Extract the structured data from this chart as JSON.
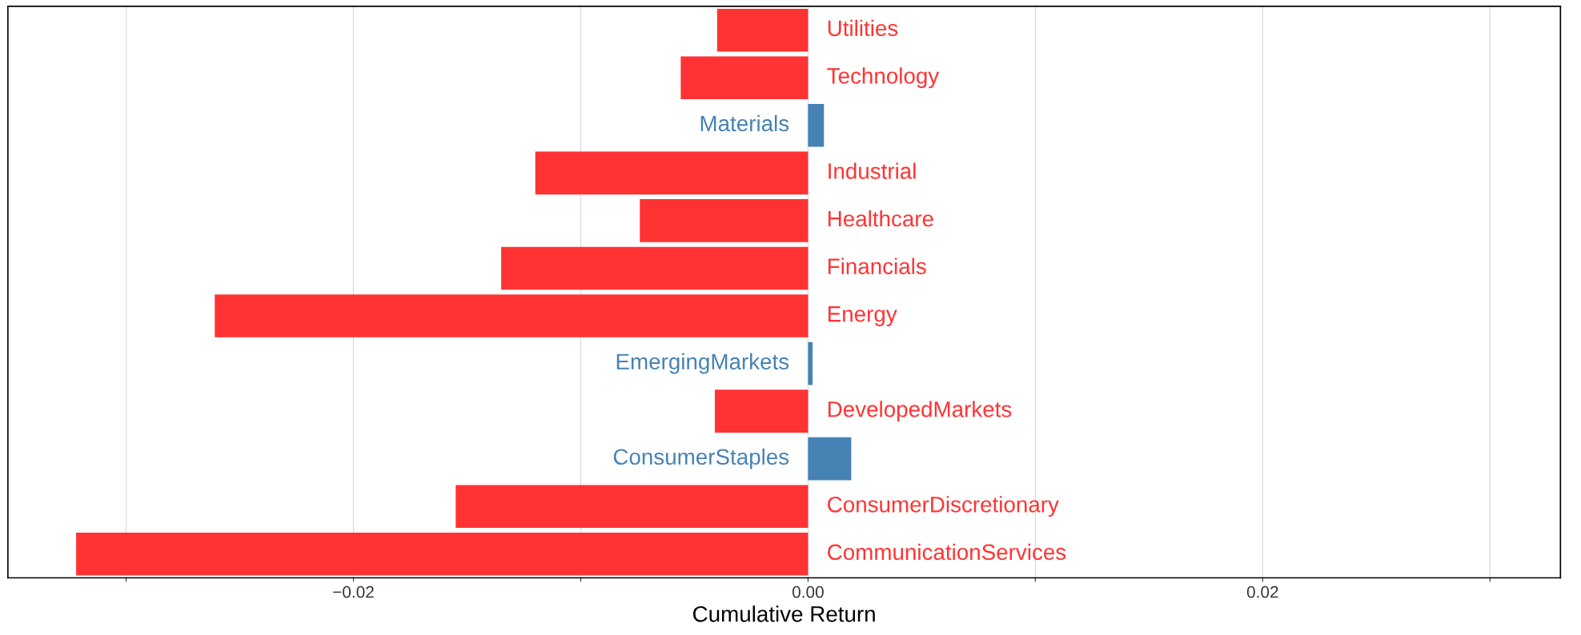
{
  "chart_data": {
    "type": "bar",
    "orientation": "horizontal",
    "xlabel": "Cumulative Return",
    "categories": [
      "Utilities",
      "Technology",
      "Materials",
      "Industrial",
      "Healthcare",
      "Financials",
      "Energy",
      "EmergingMarkets",
      "DevelopedMarkets",
      "ConsumerStaples",
      "ConsumerDiscretionary",
      "CommunicationServices"
    ],
    "values": [
      -0.004,
      -0.0056,
      0.0007,
      -0.012,
      -0.0074,
      -0.0135,
      -0.0261,
      0.0002,
      -0.0041,
      0.0019,
      -0.0155,
      -0.0322
    ],
    "colors": [
      "#ff3333",
      "#ff3333",
      "#4682b4",
      "#ff3333",
      "#ff3333",
      "#ff3333",
      "#ff3333",
      "#4682b4",
      "#ff3333",
      "#4682b4",
      "#ff3333",
      "#ff3333"
    ],
    "xlim": [
      -0.0352,
      0.0331
    ],
    "xticks": [
      {
        "value": -0.03,
        "label": null
      },
      {
        "value": -0.02,
        "label": "−0.02"
      },
      {
        "value": -0.01,
        "label": null
      },
      {
        "value": 0.0,
        "label": "0.00"
      },
      {
        "value": 0.01,
        "label": null
      },
      {
        "value": 0.02,
        "label": "0.02"
      },
      {
        "value": 0.03,
        "label": null
      }
    ],
    "grid": "x",
    "tick_labels": "x"
  }
}
